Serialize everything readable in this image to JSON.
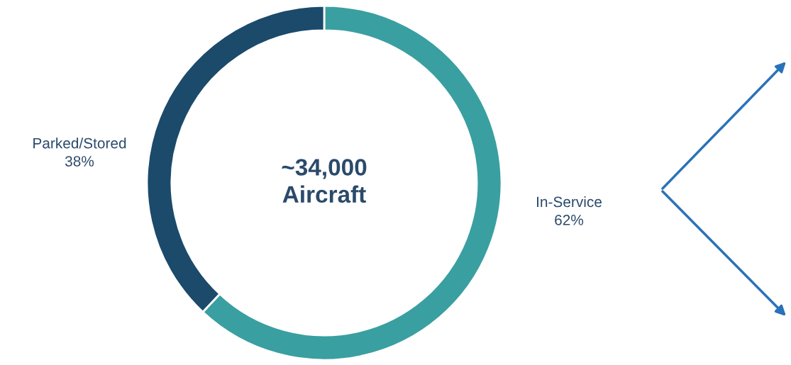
{
  "chart_data": {
    "type": "donut",
    "categories": [
      "In-Service",
      "Parked/Stored"
    ],
    "values": [
      62,
      38
    ],
    "value_labels": [
      "62%",
      "38%"
    ],
    "colors": [
      "#3a9fa0",
      "#1b4a6b"
    ],
    "annotations": [
      "~34,000\nAircraft"
    ],
    "legend": false
  }
}
